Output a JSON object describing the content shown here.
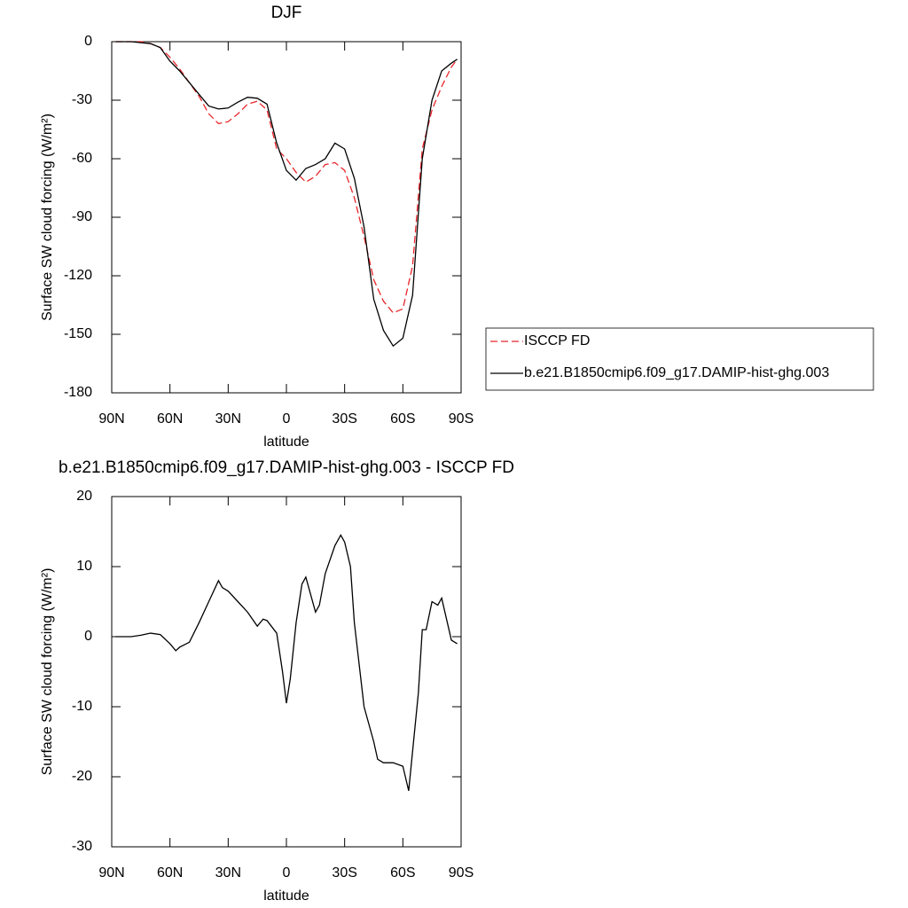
{
  "chart_data": [
    {
      "type": "line",
      "title": "DJF",
      "xlabel": "latitude",
      "ylabel": "Surface SW cloud forcing (W/m²)",
      "x": [
        88,
        85,
        80,
        75,
        70,
        65,
        60,
        55,
        50,
        45,
        40,
        35,
        30,
        25,
        20,
        15,
        10,
        5,
        0,
        -5,
        -10,
        -15,
        -20,
        -25,
        -30,
        -35,
        -40,
        -45,
        -50,
        -55,
        -60,
        -65,
        -70,
        -75,
        -80,
        -85,
        -88
      ],
      "series": [
        {
          "name": "ISCCP FD",
          "color": "#e8262a",
          "line_style": "dashed",
          "values": [
            0,
            0,
            0,
            0,
            -1,
            -3,
            -8,
            -14,
            -21,
            -28,
            -37,
            -42,
            -41,
            -37,
            -32,
            -30.5,
            -35,
            -55,
            -60,
            -67,
            -72,
            -69,
            -63,
            -62,
            -66,
            -80,
            -100,
            -122,
            -133,
            -139,
            -137,
            -115,
            -55,
            -35,
            -23,
            -13,
            -9
          ]
        },
        {
          "name": "b.e21.B1850cmip6.f09_g17.DAMIP-hist-ghg.003",
          "color": "#000000",
          "line_style": "solid",
          "values": [
            0,
            0,
            0,
            -0.5,
            -1,
            -3,
            -10,
            -15,
            -21,
            -27,
            -33,
            -34.5,
            -34,
            -31,
            -28.5,
            -29,
            -32,
            -52,
            -66,
            -71,
            -65,
            -63,
            -60,
            -52,
            -55,
            -70,
            -95,
            -132,
            -148,
            -156,
            -152,
            -130,
            -60,
            -30,
            -15,
            -11,
            -9
          ]
        }
      ],
      "xlim": [
        90,
        -90
      ],
      "xticks": [
        {
          "value": 90,
          "label": "90N"
        },
        {
          "value": 60,
          "label": "60N"
        },
        {
          "value": 30,
          "label": "30N"
        },
        0,
        {
          "value": -30,
          "label": "30S"
        },
        {
          "value": -60,
          "label": "60S"
        },
        {
          "value": -90,
          "label": "90S"
        }
      ],
      "ylim": [
        -180,
        0
      ],
      "yticks": [
        0,
        -30,
        -60,
        -90,
        -120,
        -150,
        -180
      ],
      "legend": "right"
    },
    {
      "type": "line",
      "title": "b.e21.B1850cmip6.f09_g17.DAMIP-hist-ghg.003 - ISCCP FD",
      "xlabel": "latitude",
      "ylabel": "Surface SW cloud forcing (W/m²)",
      "x": [
        88,
        85,
        80,
        75,
        70,
        65,
        60,
        57,
        55,
        50,
        45,
        40,
        35,
        33,
        30,
        25,
        20,
        15,
        12,
        10,
        5,
        2,
        0,
        -2,
        -5,
        -8,
        -10,
        -15,
        -17,
        -20,
        -25,
        -28,
        -30,
        -33,
        -35,
        -40,
        -45,
        -47,
        -50,
        -55,
        -60,
        -63,
        -68,
        -70,
        -72,
        -75,
        -78,
        -80,
        -85,
        -88
      ],
      "series": [
        {
          "color": "#000000",
          "line_style": "solid",
          "values": [
            0,
            0,
            0,
            0.2,
            0.5,
            0.3,
            -1,
            -2,
            -1.5,
            -0.8,
            2,
            5,
            8,
            7,
            6.5,
            5,
            3.5,
            1.5,
            2.5,
            2.3,
            0.5,
            -5,
            -9.5,
            -6,
            2,
            7.5,
            8.5,
            3.5,
            4.5,
            9,
            13,
            14.5,
            13.5,
            10,
            2,
            -10,
            -15,
            -17.5,
            -18,
            -18,
            -18.5,
            -22,
            -8,
            1,
            1,
            5,
            4.5,
            5.5,
            -0.5,
            -1
          ]
        }
      ],
      "xlim": [
        90,
        -90
      ],
      "xticks": [
        {
          "value": 90,
          "label": "90N"
        },
        {
          "value": 60,
          "label": "60N"
        },
        {
          "value": 30,
          "label": "30N"
        },
        0,
        {
          "value": -30,
          "label": "30S"
        },
        {
          "value": -60,
          "label": "60S"
        },
        {
          "value": -90,
          "label": "90S"
        }
      ],
      "ylim": [
        -30,
        20
      ],
      "yticks": [
        20,
        10,
        0,
        -10,
        -20,
        -30
      ]
    }
  ]
}
